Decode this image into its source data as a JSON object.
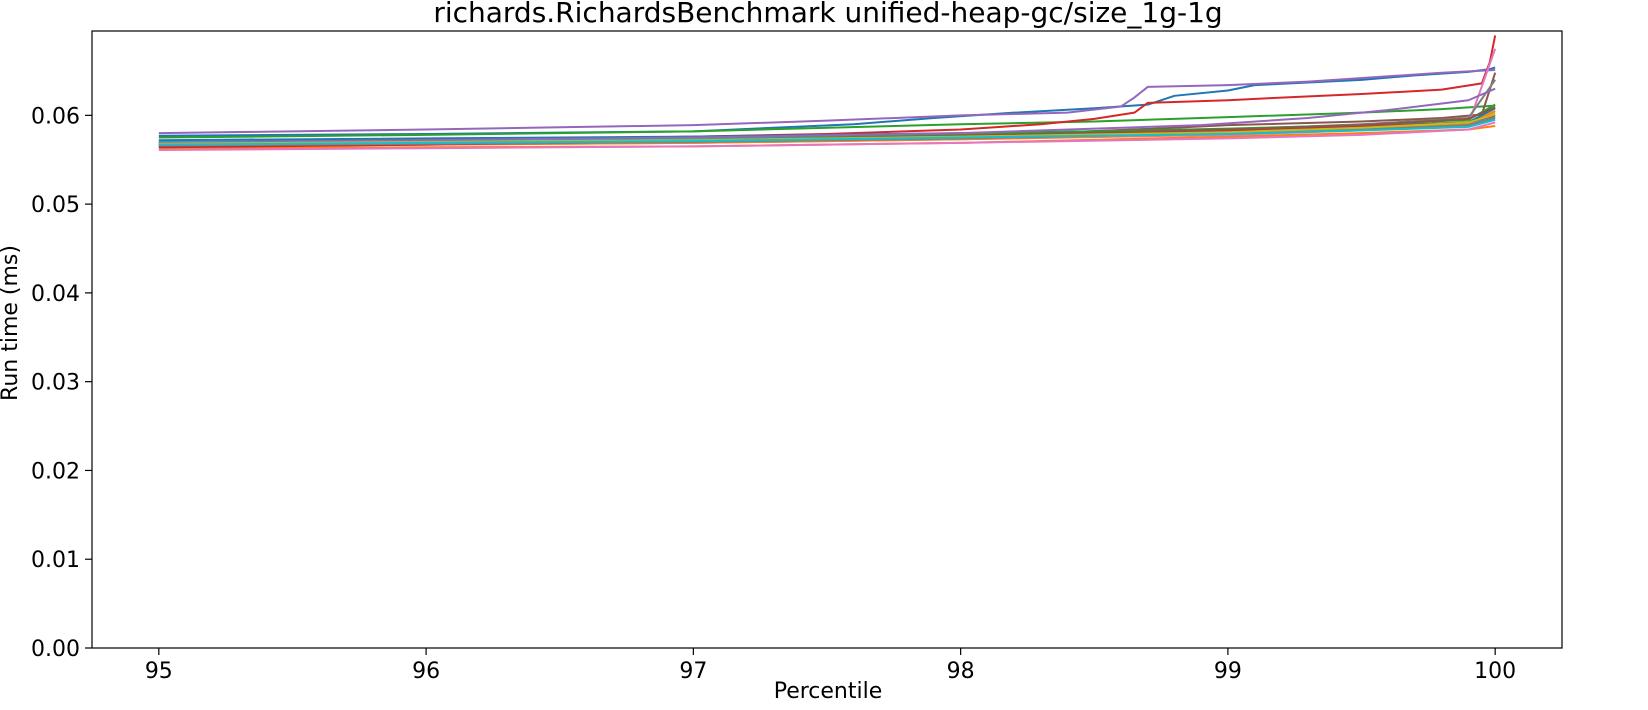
{
  "chart_data": {
    "type": "line",
    "title": "richards.RichardsBenchmark unified-heap-gc/size_1g-1g",
    "xlabel": "Percentile",
    "ylabel": "Run time (ms)",
    "xlim": [
      94.75,
      100.25
    ],
    "ylim": [
      0.0,
      0.0695
    ],
    "x_ticks": [
      "95",
      "96",
      "97",
      "98",
      "99",
      "100"
    ],
    "y_ticks": [
      "0.00",
      "0.01",
      "0.02",
      "0.03",
      "0.04",
      "0.05",
      "0.06"
    ],
    "grid": false,
    "legend": "none",
    "series": [
      {
        "color": "#1f77b4",
        "points": [
          [
            95,
            0.0577
          ],
          [
            96,
            0.0579
          ],
          [
            97,
            0.0582
          ],
          [
            97.3,
            0.0586
          ],
          [
            97.6,
            0.059
          ],
          [
            97.9,
            0.0597
          ],
          [
            98.2,
            0.0603
          ],
          [
            98.5,
            0.0608
          ],
          [
            98.7,
            0.0612
          ],
          [
            98.8,
            0.0622
          ],
          [
            99.0,
            0.0628
          ],
          [
            99.1,
            0.0634
          ],
          [
            99.5,
            0.064
          ],
          [
            99.7,
            0.0645
          ],
          [
            99.9,
            0.0649
          ],
          [
            99.98,
            0.0652
          ],
          [
            100,
            0.0654
          ]
        ]
      },
      {
        "color": "#ff7f0e",
        "points": [
          [
            95,
            0.0563
          ],
          [
            96,
            0.0564
          ],
          [
            97,
            0.0565
          ],
          [
            98,
            0.0569
          ],
          [
            99,
            0.0576
          ],
          [
            99.5,
            0.058
          ],
          [
            99.9,
            0.0584
          ],
          [
            100,
            0.0588
          ]
        ]
      },
      {
        "color": "#2ca02c",
        "points": [
          [
            95,
            0.0575
          ],
          [
            96,
            0.0578
          ],
          [
            97,
            0.0582
          ],
          [
            98,
            0.059
          ],
          [
            98.5,
            0.0593
          ],
          [
            99,
            0.0598
          ],
          [
            99.5,
            0.0603
          ],
          [
            99.8,
            0.0607
          ],
          [
            100,
            0.0611
          ]
        ]
      },
      {
        "color": "#d62728",
        "points": [
          [
            95,
            0.0568
          ],
          [
            96,
            0.0571
          ],
          [
            97,
            0.0576
          ],
          [
            97.5,
            0.0579
          ],
          [
            98,
            0.0584
          ],
          [
            98.3,
            0.059
          ],
          [
            98.5,
            0.0596
          ],
          [
            98.65,
            0.0603
          ],
          [
            98.7,
            0.0614
          ],
          [
            99.0,
            0.0617
          ],
          [
            99.2,
            0.062
          ],
          [
            99.5,
            0.0624
          ],
          [
            99.8,
            0.0629
          ],
          [
            99.95,
            0.0636
          ],
          [
            99.98,
            0.066
          ],
          [
            100,
            0.069
          ]
        ]
      },
      {
        "color": "#9467bd",
        "points": [
          [
            95,
            0.058
          ],
          [
            96,
            0.0584
          ],
          [
            97,
            0.0589
          ],
          [
            97.5,
            0.0594
          ],
          [
            98,
            0.06
          ],
          [
            98.4,
            0.0603
          ],
          [
            98.6,
            0.061
          ],
          [
            98.65,
            0.062
          ],
          [
            98.7,
            0.0632
          ],
          [
            99,
            0.0634
          ],
          [
            99.3,
            0.0638
          ],
          [
            99.6,
            0.0644
          ],
          [
            99.8,
            0.0648
          ],
          [
            100,
            0.0651
          ]
        ]
      },
      {
        "color": "#8c564b",
        "points": [
          [
            95,
            0.0567
          ],
          [
            96,
            0.057
          ],
          [
            97,
            0.0572
          ],
          [
            98,
            0.0576
          ],
          [
            98.8,
            0.0586
          ],
          [
            99.0,
            0.0589
          ],
          [
            99.5,
            0.0593
          ],
          [
            99.8,
            0.0597
          ],
          [
            99.95,
            0.0601
          ],
          [
            100,
            0.0648
          ]
        ]
      },
      {
        "color": "#e377c2",
        "points": [
          [
            95,
            0.0565
          ],
          [
            96,
            0.0567
          ],
          [
            97,
            0.0569
          ],
          [
            98,
            0.0573
          ],
          [
            99,
            0.0578
          ],
          [
            99.5,
            0.0583
          ],
          [
            99.9,
            0.059
          ],
          [
            100,
            0.0675
          ]
        ]
      },
      {
        "color": "#7f7f7f",
        "points": [
          [
            95,
            0.0568
          ],
          [
            96,
            0.057
          ],
          [
            97,
            0.0573
          ],
          [
            98,
            0.0577
          ],
          [
            99,
            0.0584
          ],
          [
            99.5,
            0.059
          ],
          [
            99.9,
            0.0597
          ],
          [
            100,
            0.064
          ]
        ]
      },
      {
        "color": "#bcbd22",
        "points": [
          [
            95,
            0.0566
          ],
          [
            96,
            0.0568
          ],
          [
            97,
            0.057
          ],
          [
            98,
            0.0574
          ],
          [
            99,
            0.058
          ],
          [
            99.5,
            0.0585
          ],
          [
            99.9,
            0.0593
          ],
          [
            100,
            0.0603
          ]
        ]
      },
      {
        "color": "#17becf",
        "points": [
          [
            95,
            0.057
          ],
          [
            96,
            0.0572
          ],
          [
            97,
            0.0574
          ],
          [
            98,
            0.0577
          ],
          [
            99,
            0.0582
          ],
          [
            99.5,
            0.0585
          ],
          [
            99.9,
            0.059
          ],
          [
            100,
            0.0598
          ]
        ]
      },
      {
        "color": "#1f77b4",
        "points": [
          [
            95,
            0.0572
          ],
          [
            96,
            0.0574
          ],
          [
            97,
            0.0576
          ],
          [
            98,
            0.058
          ],
          [
            99,
            0.0584
          ],
          [
            99.5,
            0.0588
          ],
          [
            99.9,
            0.0592
          ],
          [
            100,
            0.0608
          ]
        ]
      },
      {
        "color": "#ff7f0e",
        "points": [
          [
            95,
            0.0565
          ],
          [
            96,
            0.0567
          ],
          [
            97,
            0.0569
          ],
          [
            98,
            0.0573
          ],
          [
            99,
            0.0579
          ],
          [
            99.5,
            0.0584
          ],
          [
            99.9,
            0.059
          ],
          [
            100,
            0.0605
          ]
        ]
      },
      {
        "color": "#2ca02c",
        "points": [
          [
            95,
            0.0569
          ],
          [
            96,
            0.0572
          ],
          [
            97,
            0.0575
          ],
          [
            98,
            0.0579
          ],
          [
            99,
            0.0585
          ],
          [
            99.5,
            0.0589
          ],
          [
            99.9,
            0.0595
          ],
          [
            100,
            0.0612
          ]
        ]
      },
      {
        "color": "#d62728",
        "points": [
          [
            95,
            0.0564
          ],
          [
            96,
            0.0567
          ],
          [
            97,
            0.0571
          ],
          [
            98,
            0.0576
          ],
          [
            99,
            0.0582
          ],
          [
            99.5,
            0.0587
          ],
          [
            99.9,
            0.0592
          ],
          [
            100,
            0.06
          ]
        ]
      },
      {
        "color": "#9467bd",
        "points": [
          [
            95,
            0.0569
          ],
          [
            96,
            0.0572
          ],
          [
            97,
            0.0575
          ],
          [
            98,
            0.058
          ],
          [
            98.9,
            0.0589
          ],
          [
            99.3,
            0.0597
          ],
          [
            99.6,
            0.0606
          ],
          [
            99.9,
            0.0617
          ],
          [
            100,
            0.063
          ]
        ]
      },
      {
        "color": "#8c564b",
        "points": [
          [
            95,
            0.0566
          ],
          [
            96,
            0.0569
          ],
          [
            97,
            0.0572
          ],
          [
            98,
            0.0577
          ],
          [
            99,
            0.0584
          ],
          [
            99.5,
            0.0589
          ],
          [
            99.9,
            0.0596
          ],
          [
            100,
            0.0609
          ]
        ]
      },
      {
        "color": "#e377c2",
        "points": [
          [
            95,
            0.0561
          ],
          [
            96,
            0.0563
          ],
          [
            97,
            0.0565
          ],
          [
            98,
            0.0569
          ],
          [
            99,
            0.0574
          ],
          [
            99.5,
            0.0578
          ],
          [
            99.9,
            0.0584
          ],
          [
            100,
            0.0592
          ]
        ]
      },
      {
        "color": "#7f7f7f",
        "points": [
          [
            95,
            0.0566
          ],
          [
            96,
            0.0568
          ],
          [
            97,
            0.057
          ],
          [
            98,
            0.0574
          ],
          [
            99,
            0.058
          ],
          [
            99.5,
            0.0584
          ],
          [
            99.9,
            0.0589
          ],
          [
            100,
            0.0597
          ]
        ]
      },
      {
        "color": "#bcbd22",
        "points": [
          [
            95,
            0.0568
          ],
          [
            96,
            0.057
          ],
          [
            97,
            0.0572
          ],
          [
            98,
            0.0576
          ],
          [
            99,
            0.0581
          ],
          [
            99.5,
            0.0586
          ],
          [
            99.9,
            0.0592
          ],
          [
            100,
            0.0601
          ]
        ]
      },
      {
        "color": "#17becf",
        "points": [
          [
            95,
            0.0567
          ],
          [
            96,
            0.0569
          ],
          [
            97,
            0.0571
          ],
          [
            98,
            0.0575
          ],
          [
            99,
            0.0579
          ],
          [
            99.5,
            0.0583
          ],
          [
            99.9,
            0.0587
          ],
          [
            100,
            0.0595
          ]
        ]
      }
    ]
  }
}
